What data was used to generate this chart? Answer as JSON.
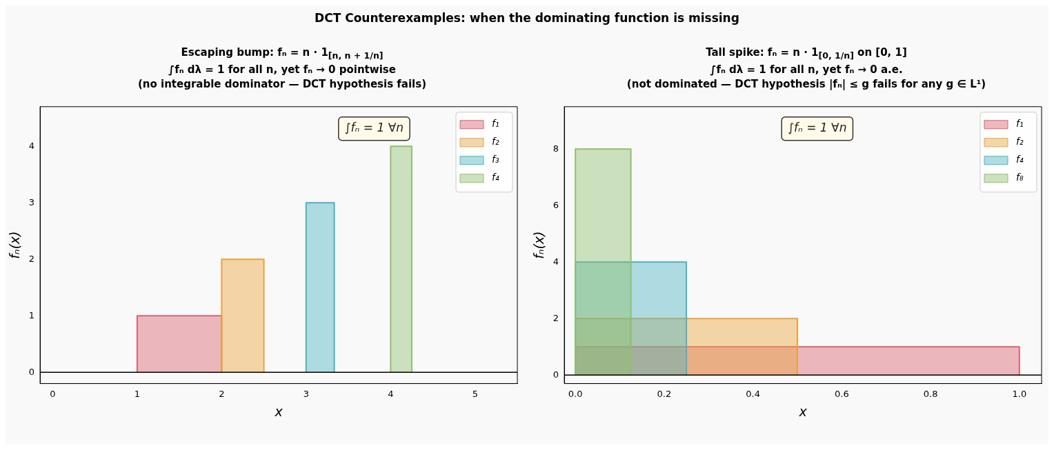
{
  "chart_data": [
    {
      "type": "area",
      "title": "DCT Counterexamples: when the dominating function is missing",
      "subtitle": "Escaping bump: fₙ = n · 1$_{[n, n + 1/n]}$\n∫fₙ dλ = 1 for all n, yet fₙ → 0 pointwise\n(no integrable dominator — DCT hypothesis fails)",
      "xlabel": "x",
      "ylabel": "fₙ(x)",
      "xlim": [
        -0.15,
        5.5
      ],
      "xticks": [
        0,
        1,
        2,
        3,
        4,
        5
      ],
      "ylim": [
        -0.2,
        4.7
      ],
      "yticks": [
        0,
        1,
        2,
        3,
        4
      ],
      "legend": "top right",
      "annotations": [
        "∫fₙ = 1 ∀n"
      ],
      "ref_lines": [
        {
          "axis": "y",
          "value": 0,
          "color": "#000000"
        }
      ],
      "series": [
        {
          "name": "f₁",
          "color": "#d9636f",
          "x": [
            1,
            1,
            2,
            2
          ],
          "values": [
            0,
            1,
            1,
            0
          ]
        },
        {
          "name": "f₂",
          "color": "#e8a33d",
          "x": [
            2,
            2,
            2.5,
            2.5
          ],
          "values": [
            0,
            2,
            2,
            0
          ]
        },
        {
          "name": "f₃",
          "color": "#4ab3c2",
          "x": [
            3,
            3,
            3.333,
            3.333
          ],
          "values": [
            0,
            3,
            3,
            0
          ]
        },
        {
          "name": "f₄",
          "color": "#8fbf6e",
          "x": [
            4,
            4,
            4.25,
            4.25
          ],
          "values": [
            0,
            4,
            4,
            0
          ]
        }
      ]
    },
    {
      "type": "area",
      "subtitle": "Tall spike: fₙ = n · 1$_{[0, 1/n]}$ on [0, 1]\n∫fₙ dλ = 1 for all n, yet fₙ → 0 a.e.\n(not dominated — DCT hypothesis |fₙ| ≤ g fails for any g ∈ L¹)",
      "xlabel": "x",
      "ylabel": "fₙ(x)",
      "xlim": [
        -0.025,
        1.05
      ],
      "xticks": [
        {
          "value": 0,
          "label": "0.0"
        },
        0.2,
        0.4,
        0.6,
        0.8,
        {
          "value": 1,
          "label": "1.0"
        }
      ],
      "ylim": [
        -0.3,
        9.5
      ],
      "yticks": [
        0,
        2,
        4,
        6,
        8
      ],
      "legend": "top right",
      "annotations": [
        "∫fₙ = 1 ∀n"
      ],
      "ref_lines": [
        {
          "axis": "y",
          "value": 0,
          "color": "#000000"
        }
      ],
      "series": [
        {
          "name": "f₁",
          "color": "#d9636f",
          "x": [
            0,
            0,
            1,
            1
          ],
          "values": [
            0,
            1,
            1,
            0
          ]
        },
        {
          "name": "f₂",
          "color": "#e8a33d",
          "x": [
            0,
            0,
            0.5,
            0.5
          ],
          "values": [
            0,
            2,
            2,
            0
          ]
        },
        {
          "name": "f₄",
          "color": "#4ab3c2",
          "x": [
            0,
            0,
            0.25,
            0.25
          ],
          "values": [
            0,
            4,
            4,
            0
          ]
        },
        {
          "name": "f₈",
          "color": "#8fbf6e",
          "x": [
            0,
            0,
            0.125,
            0.125
          ],
          "values": [
            0,
            8,
            8,
            0
          ]
        }
      ]
    }
  ]
}
